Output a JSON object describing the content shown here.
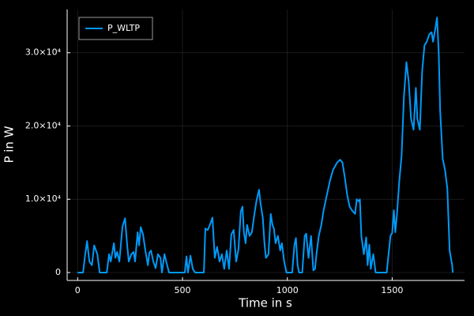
{
  "chart_data": {
    "type": "line",
    "xlabel": "Time in s",
    "ylabel": "P in W",
    "x": [
      0,
      26,
      34,
      45,
      56,
      68,
      79,
      94,
      105,
      139,
      150,
      158,
      173,
      180,
      188,
      199,
      214,
      226,
      237,
      244,
      256,
      267,
      274,
      286,
      293,
      301,
      312,
      323,
      335,
      342,
      350,
      361,
      372,
      383,
      395,
      402,
      414,
      425,
      436,
      511,
      519,
      526,
      538,
      549,
      560,
      602,
      609,
      620,
      632,
      643,
      654,
      665,
      677,
      688,
      699,
      711,
      722,
      733,
      744,
      756,
      767,
      778,
      786,
      793,
      801,
      808,
      820,
      831,
      842,
      853,
      865,
      872,
      883,
      891,
      898,
      910,
      921,
      929,
      936,
      944,
      955,
      966,
      974,
      985,
      996,
      1023,
      1034,
      1041,
      1049,
      1056,
      1071,
      1083,
      1090,
      1101,
      1113,
      1124,
      1132,
      1139,
      1150,
      1162,
      1173,
      1188,
      1203,
      1218,
      1237,
      1252,
      1263,
      1274,
      1286,
      1297,
      1308,
      1323,
      1331,
      1342,
      1346,
      1353,
      1365,
      1376,
      1383,
      1391,
      1398,
      1410,
      1421,
      1474,
      1481,
      1492,
      1500,
      1508,
      1515,
      1523,
      1534,
      1545,
      1556,
      1568,
      1579,
      1590,
      1602,
      1613,
      1620,
      1632,
      1643,
      1654,
      1665,
      1677,
      1688,
      1695,
      1707,
      1714,
      1722,
      1729,
      1741,
      1752,
      1763,
      1774,
      1786,
      1789
    ],
    "series": [
      {
        "name": "P_WLTP",
        "color": "#009af9",
        "values": [
          0,
          0,
          2000,
          4300,
          1500,
          1000,
          3700,
          2500,
          0,
          0,
          2500,
          1500,
          4000,
          2000,
          2800,
          1500,
          6300,
          7400,
          3500,
          1500,
          2500,
          2800,
          1500,
          5500,
          3700,
          6200,
          5200,
          3000,
          1000,
          2700,
          3000,
          1500,
          600,
          2500,
          2000,
          0,
          2500,
          1200,
          0,
          0,
          2200,
          0,
          2300,
          500,
          0,
          0,
          6000,
          5800,
          6600,
          7500,
          2000,
          3500,
          1500,
          2500,
          500,
          3000,
          500,
          5200,
          5800,
          1500,
          3200,
          8300,
          9000,
          5500,
          4000,
          6500,
          5000,
          5500,
          7800,
          9800,
          11300,
          9500,
          7500,
          4000,
          2000,
          2500,
          8000,
          6500,
          6000,
          4000,
          5000,
          3000,
          4000,
          1500,
          0,
          0,
          3800,
          4700,
          1000,
          0,
          0,
          5000,
          5300,
          2000,
          5000,
          300,
          500,
          2500,
          5000,
          6500,
          8500,
          10500,
          12500,
          14000,
          15000,
          15400,
          15000,
          13000,
          10500,
          9000,
          8500,
          8000,
          10000,
          9700,
          10000,
          5000,
          2500,
          4800,
          1000,
          3800,
          500,
          2500,
          0,
          0,
          2000,
          5000,
          5400,
          8500,
          5500,
          8000,
          12500,
          16000,
          24000,
          28700,
          26000,
          21000,
          19500,
          25200,
          21000,
          19500,
          27500,
          31000,
          31500,
          32500,
          32800,
          31500,
          33500,
          34800,
          30000,
          22000,
          15500,
          14000,
          11500,
          3000,
          1000,
          0
        ]
      }
    ],
    "xlim": [
      -50,
      1845
    ],
    "ylim": [
      -1080,
      35900
    ],
    "xticks": [
      0,
      500,
      1000,
      1500
    ],
    "yticks": [
      0,
      {
        "value": 10000,
        "label": "1.0×10⁴"
      },
      {
        "value": 20000,
        "label": "2.0×10⁴"
      },
      {
        "value": 30000,
        "label": "3.0×10⁴"
      }
    ],
    "grid": true,
    "legend": "top-left"
  }
}
